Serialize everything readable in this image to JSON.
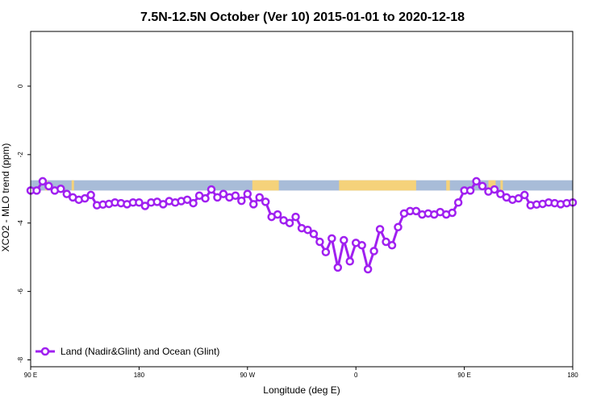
{
  "chart_data": {
    "type": "line",
    "title": "7.5N-12.5N October (Ver 10)   2015-01-01 to 2020-12-18",
    "xlabel": "Longitude (deg E)",
    "ylabel": "XCO2 - MLO trend (ppm)",
    "xlim": [
      90,
      540
    ],
    "ylim": [
      -8.2,
      1.6
    ],
    "xticks": [
      {
        "value": 90,
        "label": "90 E"
      },
      {
        "value": 180,
        "label": "180"
      },
      {
        "value": 270,
        "label": "90 W"
      },
      {
        "value": 360,
        "label": "0"
      },
      {
        "value": 450,
        "label": "90 E"
      },
      {
        "value": 540,
        "label": "180"
      }
    ],
    "yticks": [
      {
        "value": 0,
        "label": "0"
      },
      {
        "value": -2,
        "label": "-2"
      },
      {
        "value": -4,
        "label": "-4"
      },
      {
        "value": -6,
        "label": "-6"
      },
      {
        "value": -8,
        "label": "-8"
      }
    ],
    "legend": {
      "position": "bottom-left",
      "entries": [
        "Land (Nadir&Glint) and Ocean (Glint)"
      ]
    },
    "band": {
      "y_top": -2.75,
      "y_bottom": -3.05,
      "ocean_color": "#a8bcd8",
      "land_color": "#f5d27a",
      "land_segments": [
        [
          102,
          104
        ],
        [
          124,
          126
        ],
        [
          274,
          296
        ],
        [
          346,
          410
        ],
        [
          435,
          438
        ],
        [
          470,
          476
        ],
        [
          480,
          482
        ]
      ]
    },
    "series": [
      {
        "name": "Land (Nadir&Glint) and Ocean (Glint)",
        "color": "#a020f0",
        "x": [
          90,
          95,
          100,
          105,
          110,
          115,
          120,
          125,
          130,
          135,
          140,
          145,
          150,
          155,
          160,
          165,
          170,
          175,
          180,
          185,
          190,
          195,
          200,
          205,
          210,
          215,
          220,
          225,
          230,
          235,
          240,
          245,
          250,
          255,
          260,
          265,
          270,
          275,
          280,
          285,
          290,
          295,
          300,
          305,
          310,
          315,
          320,
          325,
          330,
          335,
          340,
          345,
          350,
          355,
          360,
          365,
          370,
          375,
          380,
          385,
          390,
          395,
          400,
          405,
          410,
          415,
          420,
          425,
          430,
          435,
          440,
          445,
          450,
          455,
          460,
          465,
          470,
          475,
          480,
          485,
          490,
          495,
          500,
          505,
          510,
          515,
          520,
          525,
          530,
          535,
          540
        ],
        "values": [
          -3.05,
          -3.05,
          -2.78,
          -2.92,
          -3.05,
          -3.0,
          -3.15,
          -3.25,
          -3.32,
          -3.28,
          -3.18,
          -3.48,
          -3.46,
          -3.44,
          -3.4,
          -3.42,
          -3.45,
          -3.4,
          -3.4,
          -3.5,
          -3.4,
          -3.38,
          -3.45,
          -3.36,
          -3.4,
          -3.36,
          -3.32,
          -3.42,
          -3.2,
          -3.28,
          -3.02,
          -3.25,
          -3.15,
          -3.25,
          -3.2,
          -3.35,
          -3.15,
          -3.45,
          -3.25,
          -3.38,
          -3.82,
          -3.75,
          -3.92,
          -4.0,
          -3.82,
          -4.15,
          -4.2,
          -4.32,
          -4.55,
          -4.85,
          -4.45,
          -5.3,
          -4.5,
          -5.12,
          -4.58,
          -4.65,
          -5.35,
          -4.82,
          -4.18,
          -4.55,
          -4.65,
          -4.12,
          -3.72,
          -3.65,
          -3.65,
          -3.75,
          -3.72,
          -3.75,
          -3.68,
          -3.75,
          -3.7,
          -3.4,
          -3.05,
          -3.05,
          -2.78,
          -2.92,
          -3.08,
          -3.02,
          -3.15,
          -3.25,
          -3.32,
          -3.28,
          -3.18,
          -3.48,
          -3.46,
          -3.44,
          -3.4,
          -3.42,
          -3.45,
          -3.42,
          -3.4
        ]
      }
    ]
  }
}
